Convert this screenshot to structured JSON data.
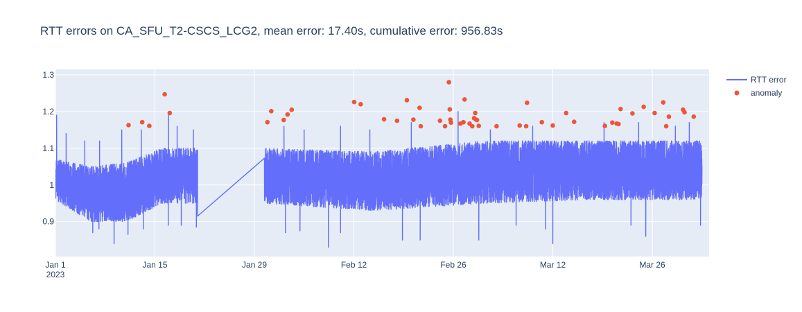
{
  "chart_data": {
    "type": "line",
    "title": "RTT errors on CA_SFU_T2-CSCS_LCG2, mean error: 17.40s, cumulative error: 956.83s",
    "xlabel": "",
    "ylabel": "",
    "xlim": [
      "2023-01-01",
      "2023-04-03"
    ],
    "ylim": [
      0.805,
      1.315
    ],
    "grid": true,
    "legend_position": "top-right",
    "x_ticks": [
      {
        "date": "2023-01-01",
        "label": "Jan 1",
        "sublabel": "2023"
      },
      {
        "date": "2023-01-15",
        "label": "Jan 15"
      },
      {
        "date": "2023-01-29",
        "label": "Jan 29"
      },
      {
        "date": "2023-02-12",
        "label": "Feb 12"
      },
      {
        "date": "2023-02-26",
        "label": "Feb 26"
      },
      {
        "date": "2023-03-12",
        "label": "Mar 12"
      },
      {
        "date": "2023-03-26",
        "label": "Mar 26"
      }
    ],
    "y_ticks": [
      {
        "value": 0.9,
        "label": "0.9"
      },
      {
        "value": 1.0,
        "label": "1"
      },
      {
        "value": 1.1,
        "label": "1.1"
      },
      {
        "value": 1.2,
        "label": "1.2"
      },
      {
        "value": 1.3,
        "label": "1.3"
      }
    ],
    "data_gap": {
      "start": "2023-01-21T00:00",
      "end": "2023-01-30T10:00",
      "start_value": 0.915,
      "end_value": 1.005
    },
    "series": [
      {
        "name": "RTT error",
        "mode": "line",
        "color": "#636efa",
        "segments": [
          {
            "start": "2023-01-01",
            "end": "2023-01-21",
            "low": [
              0.96,
              0.9,
              0.9,
              0.95,
              0.95
            ],
            "high": [
              1.07,
              1.05,
              1.06,
              1.1,
              1.1
            ]
          },
          {
            "start": "2023-01-30T10:00",
            "end": "2023-04-02",
            "low": [
              0.95,
              0.93,
              0.95,
              0.96,
              0.96
            ],
            "high": [
              1.1,
              1.09,
              1.12,
              1.12,
              1.12
            ]
          }
        ],
        "spikes": [
          [
            "2023-01-01T04:00",
            1.19
          ],
          [
            "2023-01-02T12:00",
            1.14
          ],
          [
            "2023-01-05T03:00",
            1.12
          ],
          [
            "2023-01-07T05:00",
            1.12
          ],
          [
            "2023-01-10T08:00",
            1.15
          ],
          [
            "2023-01-13T02:00",
            1.15
          ],
          [
            "2023-01-16T22:00",
            1.19
          ],
          [
            "2023-01-18T03:00",
            1.16
          ],
          [
            "2023-01-20T10:00",
            1.15
          ],
          [
            "2023-02-02T04:00",
            1.16
          ],
          [
            "2023-02-05T00:00",
            1.15
          ],
          [
            "2023-02-10T03:00",
            1.16
          ],
          [
            "2023-02-14T06:00",
            1.15
          ],
          [
            "2023-02-20T02:00",
            1.17
          ],
          [
            "2023-02-26T16:00",
            1.2
          ],
          [
            "2023-03-03T05:00",
            1.15
          ],
          [
            "2023-03-09T04:00",
            1.16
          ],
          [
            "2023-03-19T05:00",
            1.17
          ],
          [
            "2023-03-24T02:00",
            1.17
          ],
          [
            "2023-03-29T06:00",
            1.16
          ],
          [
            "2023-03-31T05:00",
            1.17
          ]
        ],
        "dips": [
          [
            "2023-01-06T06:00",
            0.87
          ],
          [
            "2023-01-07T03:00",
            0.88
          ],
          [
            "2023-01-09T06:00",
            0.84
          ],
          [
            "2023-01-11T05:00",
            0.865
          ],
          [
            "2023-01-13T09:00",
            0.88
          ],
          [
            "2023-01-16T21:00",
            0.89
          ],
          [
            "2023-01-18T17:00",
            0.89
          ],
          [
            "2023-01-20T20:00",
            0.885
          ],
          [
            "2023-02-02T09:00",
            0.87
          ],
          [
            "2023-02-04T10:00",
            0.875
          ],
          [
            "2023-02-08T10:00",
            0.83
          ],
          [
            "2023-02-10T03:00",
            0.87
          ],
          [
            "2023-02-18T20:00",
            0.85
          ],
          [
            "2023-02-21T08:00",
            0.85
          ],
          [
            "2023-03-01T14:00",
            0.85
          ],
          [
            "2023-03-06T20:00",
            0.89
          ],
          [
            "2023-03-11T00:00",
            0.88
          ],
          [
            "2023-03-12T00:00",
            0.84
          ],
          [
            "2023-03-23T00:00",
            0.89
          ],
          [
            "2023-03-25T02:00",
            0.86
          ],
          [
            "2023-04-01T19:00",
            0.89
          ]
        ]
      },
      {
        "name": "anomaly",
        "mode": "markers",
        "color": "#ef553b",
        "x": [
          "2023-01-11T07:00",
          "2023-01-13T05:00",
          "2023-01-14T05:00",
          "2023-01-16T09:00",
          "2023-01-17T02:00",
          "2023-01-30T20:00",
          "2023-01-31T09:00",
          "2023-02-02T03:00",
          "2023-02-02T16:00",
          "2023-02-03T06:00",
          "2023-02-12T01:00",
          "2023-02-12T23:00",
          "2023-02-16T06:00",
          "2023-02-18T02:00",
          "2023-02-19T11:00",
          "2023-02-20T09:00",
          "2023-02-21T06:00",
          "2023-02-21T10:00",
          "2023-02-24T03:00",
          "2023-02-24T20:00",
          "2023-02-25T09:00",
          "2023-02-25T12:00",
          "2023-02-25T14:00",
          "2023-02-25T16:00",
          "2023-02-27T00:00",
          "2023-02-27T10:00",
          "2023-02-27T14:00",
          "2023-02-28T07:00",
          "2023-02-28T16:00",
          "2023-02-28T22:00",
          "2023-03-01T02:00",
          "2023-03-01T05:00",
          "2023-03-01T08:00",
          "2023-03-01T14:00",
          "2023-03-04T02:00",
          "2023-03-07T08:00",
          "2023-03-08T06:00",
          "2023-03-08T09:00",
          "2023-03-10T11:00",
          "2023-03-12T00:00",
          "2023-03-13T21:00",
          "2023-03-15T00:00",
          "2023-03-19T08:00",
          "2023-03-20T09:00",
          "2023-03-21T00:00",
          "2023-03-21T06:00",
          "2023-03-21T13:00",
          "2023-03-23T05:00",
          "2023-03-24T19:00",
          "2023-03-26T08:00",
          "2023-03-27T13:00",
          "2023-03-27T23:00",
          "2023-03-28T08:00",
          "2023-03-30T08:00",
          "2023-03-30T13:00",
          "2023-03-31T20:00"
        ],
        "y": [
          1.163,
          1.171,
          1.161,
          1.247,
          1.196,
          1.171,
          1.201,
          1.177,
          1.192,
          1.205,
          1.226,
          1.22,
          1.179,
          1.175,
          1.231,
          1.178,
          1.21,
          1.16,
          1.175,
          1.16,
          1.28,
          1.206,
          1.178,
          1.17,
          1.167,
          1.171,
          1.233,
          1.167,
          1.16,
          1.182,
          1.196,
          1.178,
          1.177,
          1.161,
          1.16,
          1.162,
          1.16,
          1.224,
          1.171,
          1.162,
          1.196,
          1.172,
          1.161,
          1.17,
          1.167,
          1.166,
          1.207,
          1.195,
          1.213,
          1.196,
          1.225,
          1.16,
          1.186,
          1.205,
          1.198,
          1.186
        ]
      }
    ]
  }
}
